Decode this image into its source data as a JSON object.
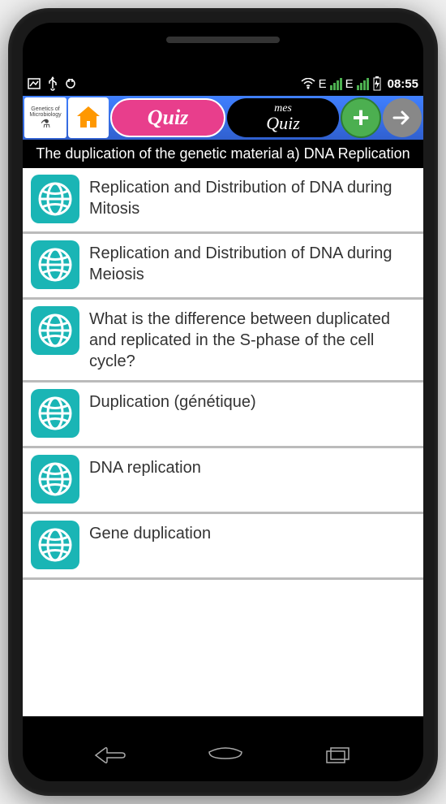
{
  "status": {
    "time": "08:55",
    "net_label": "E",
    "icons": {
      "image": "▢",
      "usb": "ψ",
      "plug": "⚇"
    }
  },
  "toolbar": {
    "logo_text": "Genetics of Microbiology",
    "quiz1_label": "Quiz",
    "quiz2_top": "mes",
    "quiz2_bottom": "Quiz"
  },
  "header": {
    "title": "The duplication of the genetic material a) DNA Replication"
  },
  "items": [
    {
      "label": "Replication and Distribution of DNA during Mitosis"
    },
    {
      "label": "Replication and Distribution of DNA during Meiosis"
    },
    {
      "label": "What is the difference between duplicated and replicated in the S-phase of the cell cycle?"
    },
    {
      "label": "Duplication (génétique)"
    },
    {
      "label": "DNA replication"
    },
    {
      "label": "Gene duplication"
    }
  ],
  "colors": {
    "accent_teal": "#1ab5b5",
    "toolbar_blue": "#3060d0",
    "quiz_pink": "#e83e8c",
    "plus_green": "#4caf50"
  }
}
